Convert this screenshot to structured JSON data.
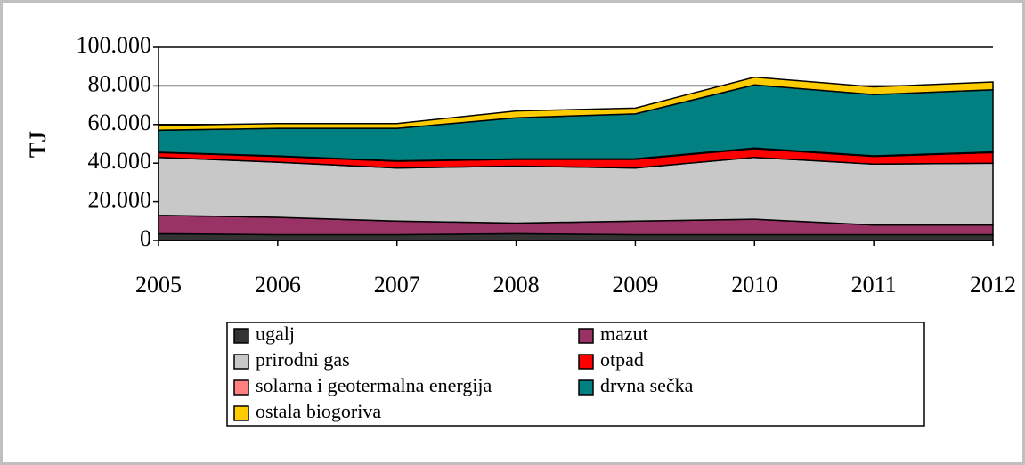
{
  "chart_data": {
    "type": "stacked_area",
    "y_label": "TJ",
    "categories": [
      "2005",
      "2006",
      "2007",
      "2008",
      "2009",
      "2010",
      "2011",
      "2012"
    ],
    "series": [
      {
        "name": "ugalj",
        "color": "#333333",
        "values": [
          3500,
          3000,
          3000,
          3500,
          3000,
          3000,
          3000,
          3000
        ]
      },
      {
        "name": "mazut",
        "color": "#993366",
        "values": [
          9500,
          9000,
          7000,
          5500,
          7000,
          8000,
          5000,
          5000
        ]
      },
      {
        "name": "prirodni gas",
        "color": "#c8c8c8",
        "values": [
          30000,
          28500,
          27500,
          29500,
          27500,
          32000,
          31500,
          32000
        ]
      },
      {
        "name": "otpad",
        "color": "#ff0000",
        "values": [
          2500,
          3000,
          3500,
          3500,
          4500,
          4500,
          4000,
          5500
        ]
      },
      {
        "name": "solarna i geotermalna energija",
        "color": "#ff8080",
        "values": [
          200,
          200,
          200,
          200,
          300,
          300,
          300,
          300
        ]
      },
      {
        "name": "drvna sečka",
        "color": "#008080",
        "values": [
          11300,
          14300,
          16800,
          21300,
          23200,
          32700,
          31700,
          32200
        ]
      },
      {
        "name": "ostala biogoriva",
        "color": "#ffcc00",
        "values": [
          2500,
          2500,
          2500,
          3500,
          3000,
          4000,
          4000,
          4000
        ]
      }
    ],
    "ylim": [
      0,
      100000
    ],
    "yticks": [
      0,
      {
        "value": 20000,
        "label": "20.000"
      },
      {
        "value": 40000,
        "label": "40.000"
      },
      {
        "value": 60000,
        "label": "60.000"
      },
      {
        "value": 80000,
        "label": "80.000"
      },
      {
        "value": 100000,
        "label": "100.000"
      }
    ],
    "grid": true,
    "legend": "bottom"
  }
}
